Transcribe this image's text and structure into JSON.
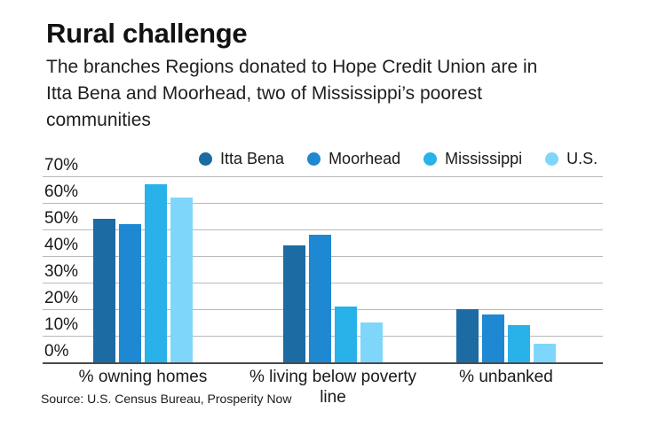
{
  "header": {
    "title": "Rural challenge",
    "subtitle_lines": [
      "The branches Regions donated to Hope Credit Union are in",
      "Itta Bena and Moorhead, two of Mississippi’s poorest",
      "communities"
    ]
  },
  "source": "Source: U.S. Census Bureau, Prosperity Now",
  "chart_data": {
    "type": "bar",
    "title": "Rural challenge",
    "categories": [
      "% owning homes",
      "% living below poverty line",
      "% unbanked"
    ],
    "series": [
      {
        "name": "Itta Bena",
        "color": "#1c6ba2",
        "values": [
          54,
          44,
          20
        ]
      },
      {
        "name": "Moorhead",
        "color": "#1e88d2",
        "values": [
          52,
          48,
          18
        ]
      },
      {
        "name": "Mississippi",
        "color": "#29b2ea",
        "values": [
          67,
          21,
          14
        ]
      },
      {
        "name": "U.S.",
        "color": "#7fd6fb",
        "values": [
          62,
          15,
          7
        ]
      }
    ],
    "ylabel": "",
    "xlabel": "",
    "ylim": [
      0,
      70
    ],
    "ytick_labels": [
      "0%",
      "10%",
      "20%",
      "30%",
      "40%",
      "50%",
      "60%",
      "70%"
    ],
    "ytick_step": 10,
    "grid": true,
    "legend_position": "top",
    "colors_semantic": {
      "gridline": "#b9b9b9",
      "axis_line": "#4a4a4c",
      "text": "#1a1a1a"
    }
  }
}
